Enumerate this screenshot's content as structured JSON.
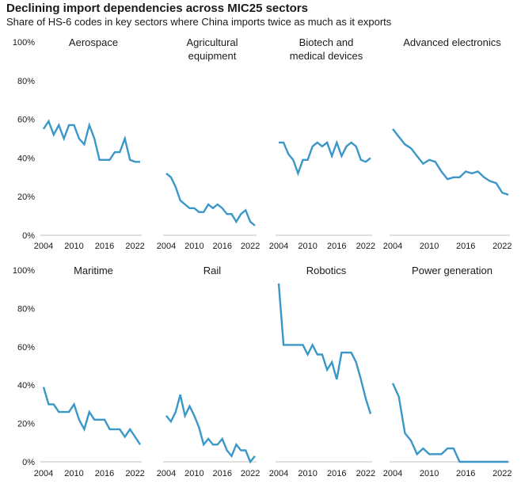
{
  "title": "Declining import dependencies across MIC25 sectors",
  "subtitle": "Share of HS-6 codes in key sectors where China imports twice as much as it exports",
  "colors": {
    "line": "#3a97c8",
    "text": "#1a1a1a",
    "axis": "#bfbfbf"
  },
  "chart_data": {
    "type": "line",
    "ylim": [
      0,
      100
    ],
    "yticks": [
      0,
      20,
      40,
      60,
      80,
      100
    ],
    "ytick_labels": [
      "0%",
      "20%",
      "40%",
      "60%",
      "80%",
      "100%"
    ],
    "xlim": [
      2004,
      2023
    ],
    "xticks": [
      2004,
      2010,
      2016,
      2022
    ],
    "years": [
      2004,
      2005,
      2006,
      2007,
      2008,
      2009,
      2010,
      2011,
      2012,
      2013,
      2014,
      2015,
      2016,
      2017,
      2018,
      2019,
      2020,
      2021,
      2022,
      2023
    ],
    "panels": [
      {
        "name": "Aerospace",
        "title_lines": [
          "Aerospace"
        ],
        "values": [
          55,
          59,
          52,
          57,
          50,
          57,
          57,
          50,
          47,
          57,
          50,
          39,
          39,
          39,
          43,
          43,
          50,
          39,
          38,
          38
        ]
      },
      {
        "name": "Agricultural equipment",
        "title_lines": [
          "Agricultural",
          "equipment"
        ],
        "values": [
          32,
          30,
          25,
          18,
          16,
          14,
          14,
          12,
          12,
          16,
          14,
          16,
          14,
          11,
          11,
          7,
          11,
          13,
          7,
          5
        ]
      },
      {
        "name": "Biotech and medical devices",
        "title_lines": [
          "Biotech and",
          "medical devices"
        ],
        "values": [
          48,
          48,
          42,
          39,
          32,
          39,
          39,
          46,
          48,
          46,
          48,
          41,
          48,
          41,
          46,
          48,
          46,
          39,
          38,
          40
        ]
      },
      {
        "name": "Advanced electronics",
        "title_lines": [
          "Advanced electronics"
        ],
        "values": [
          55,
          51,
          47,
          45,
          41,
          37,
          39,
          38,
          33,
          29,
          30,
          30,
          33,
          32,
          33,
          30,
          28,
          27,
          22,
          21
        ]
      },
      {
        "name": "Maritime",
        "title_lines": [
          "Maritime"
        ],
        "values": [
          39,
          30,
          30,
          26,
          26,
          26,
          30,
          22,
          17,
          26,
          22,
          22,
          22,
          17,
          17,
          17,
          13,
          17,
          13,
          9
        ]
      },
      {
        "name": "Rail",
        "title_lines": [
          "Rail"
        ],
        "values": [
          24,
          21,
          26,
          35,
          24,
          29,
          24,
          18,
          9,
          12,
          9,
          9,
          12,
          6,
          3,
          9,
          6,
          6,
          0,
          3
        ]
      },
      {
        "name": "Robotics",
        "title_lines": [
          "Robotics"
        ],
        "values": [
          93,
          61,
          61,
          61,
          61,
          61,
          56,
          61,
          56,
          56,
          48,
          52,
          43,
          57,
          57,
          57,
          52,
          43,
          33,
          25
        ]
      },
      {
        "name": "Power generation",
        "title_lines": [
          "Power generation"
        ],
        "values": [
          41,
          34,
          15,
          11,
          4,
          7,
          4,
          4,
          4,
          7,
          7,
          0,
          0,
          0,
          0,
          0,
          0,
          0,
          0,
          0
        ]
      }
    ]
  }
}
